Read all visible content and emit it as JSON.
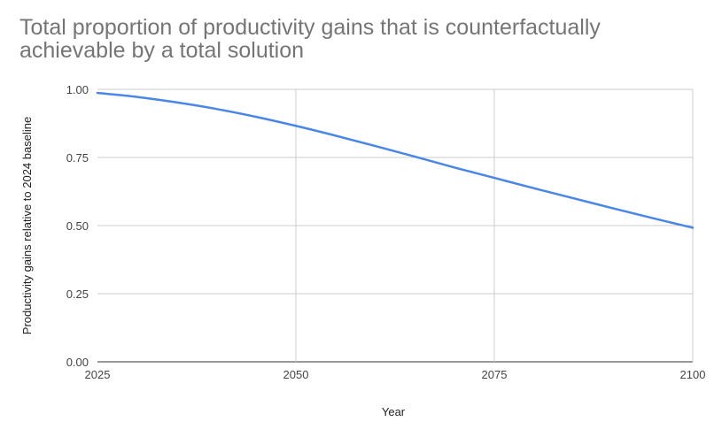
{
  "chart_data": {
    "type": "line",
    "title": "Total proportion of productivity gains that is counterfactually achievable by a total solution",
    "xlabel": "Year",
    "ylabel": "Productivity gains relative to 2024 baseline",
    "xlim": [
      2025,
      2100
    ],
    "ylim": [
      0,
      1
    ],
    "x_ticks": [
      "2025",
      "2050",
      "2075",
      "2100"
    ],
    "y_ticks": [
      "0.00",
      "0.25",
      "0.50",
      "0.75",
      "1.00"
    ],
    "grid": true,
    "legend": "none",
    "series": [
      {
        "color": "#4a86e8",
        "x": [
          2025,
          2030,
          2035,
          2040,
          2045,
          2050,
          2055,
          2060,
          2065,
          2070,
          2075,
          2080,
          2085,
          2090,
          2095,
          2100
        ],
        "y": [
          0.987,
          0.972,
          0.952,
          0.928,
          0.899,
          0.866,
          0.83,
          0.792,
          0.753,
          0.713,
          0.675,
          0.637,
          0.6,
          0.563,
          0.527,
          0.492
        ]
      }
    ]
  }
}
